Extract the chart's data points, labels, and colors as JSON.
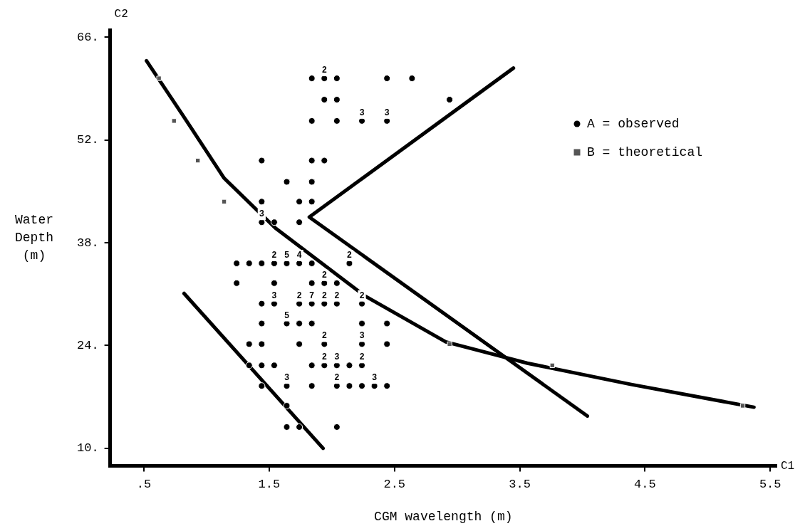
{
  "chart_data": {
    "type": "scatter",
    "xlabel": "CGM wavelength (m)",
    "ylabel": "Water Depth (m)",
    "xlim": [
      0.23,
      5.55
    ],
    "ylim": [
      7.6,
      67
    ],
    "xticks": [
      {
        "value": 0.5,
        "label": ".5"
      },
      1.5,
      2.5,
      3.5,
      4.5,
      5.5
    ],
    "yticks": [
      {
        "value": 10,
        "label": "10."
      },
      {
        "value": 24,
        "label": "24."
      },
      {
        "value": 38,
        "label": "38."
      },
      {
        "value": 52,
        "label": "52."
      },
      {
        "value": 66,
        "label": "66."
      }
    ],
    "grid": false,
    "legend": "top right",
    "annotations": [
      "C2",
      "C1",
      {
        "text": "2",
        "x": 1.94,
        "y": 60.4
      },
      {
        "text": "3",
        "x": 2.24,
        "y": 54.6
      },
      {
        "text": "3",
        "x": 2.44,
        "y": 54.6
      },
      {
        "text": "3",
        "x": 1.44,
        "y": 40.8
      },
      {
        "text": "2",
        "x": 1.54,
        "y": 35.2
      },
      {
        "text": "5",
        "x": 1.64,
        "y": 35.2
      },
      {
        "text": "4",
        "x": 1.74,
        "y": 35.2
      },
      {
        "text": "2",
        "x": 2.14,
        "y": 35.2
      },
      {
        "text": "2",
        "x": 1.94,
        "y": 32.5
      },
      {
        "text": "3",
        "x": 1.54,
        "y": 29.7
      },
      {
        "text": "2",
        "x": 1.74,
        "y": 29.7
      },
      {
        "text": "7",
        "x": 1.84,
        "y": 29.7
      },
      {
        "text": "2",
        "x": 1.94,
        "y": 29.7
      },
      {
        "text": "2",
        "x": 2.04,
        "y": 29.7
      },
      {
        "text": "2",
        "x": 2.24,
        "y": 29.7
      },
      {
        "text": "5",
        "x": 1.64,
        "y": 27.0
      },
      {
        "text": "2",
        "x": 1.94,
        "y": 24.2
      },
      {
        "text": "3",
        "x": 2.24,
        "y": 24.2
      },
      {
        "text": "2",
        "x": 1.94,
        "y": 21.3
      },
      {
        "text": "3",
        "x": 2.04,
        "y": 21.3
      },
      {
        "text": "2",
        "x": 2.24,
        "y": 21.3
      },
      {
        "text": "3",
        "x": 1.64,
        "y": 18.5
      },
      {
        "text": "2",
        "x": 2.04,
        "y": 18.5
      },
      {
        "text": "3",
        "x": 2.34,
        "y": 18.5
      }
    ],
    "series": [
      {
        "name": "A = observed",
        "color": "#000000",
        "marker": "circle",
        "x": [
          1.84,
          1.94,
          2.04,
          2.44,
          2.64,
          1.94,
          2.04,
          2.94,
          1.84,
          2.04,
          2.24,
          2.44,
          1.44,
          1.84,
          1.94,
          1.64,
          1.84,
          1.44,
          1.74,
          1.84,
          1.44,
          1.54,
          1.74,
          1.24,
          1.34,
          1.44,
          1.54,
          1.64,
          1.74,
          1.84,
          2.14,
          1.24,
          1.54,
          1.84,
          1.94,
          2.04,
          1.44,
          1.54,
          1.74,
          1.84,
          1.94,
          2.04,
          2.24,
          1.44,
          1.64,
          1.74,
          1.84,
          2.24,
          2.44,
          1.34,
          1.44,
          1.74,
          1.94,
          2.24,
          2.44,
          1.34,
          1.44,
          1.54,
          1.84,
          1.94,
          2.04,
          2.14,
          2.24,
          1.44,
          1.64,
          1.84,
          2.04,
          2.14,
          2.24,
          2.34,
          2.44,
          1.64,
          1.64,
          1.74,
          2.04
        ],
        "values": [
          60.4,
          60.4,
          60.4,
          60.4,
          60.4,
          57.5,
          57.5,
          57.5,
          54.6,
          54.6,
          54.6,
          54.6,
          49.2,
          49.2,
          49.2,
          46.3,
          46.3,
          43.6,
          43.6,
          43.6,
          40.8,
          40.8,
          40.8,
          35.2,
          35.2,
          35.2,
          35.2,
          35.2,
          35.2,
          35.2,
          35.2,
          32.5,
          32.5,
          32.5,
          32.5,
          32.5,
          29.7,
          29.7,
          29.7,
          29.7,
          29.7,
          29.7,
          29.7,
          27.0,
          27.0,
          27.0,
          27.0,
          27.0,
          27.0,
          24.2,
          24.2,
          24.2,
          24.2,
          24.2,
          24.2,
          21.3,
          21.3,
          21.3,
          21.3,
          21.3,
          21.3,
          21.3,
          21.3,
          18.5,
          18.5,
          18.5,
          18.5,
          18.5,
          18.5,
          18.5,
          18.5,
          15.8,
          12.9,
          12.9,
          12.9
        ]
      },
      {
        "name": "B = theoretical",
        "color": "#555555",
        "marker": "square",
        "x": [
          0.62,
          0.74,
          0.93,
          1.14,
          2.94,
          3.76,
          5.28
        ],
        "values": [
          60.4,
          54.6,
          49.2,
          43.6,
          24.2,
          21.3,
          15.8
        ]
      },
      {
        "type": "line",
        "color": "#000000",
        "x": [
          0.52,
          0.84,
          1.14,
          1.55,
          2.26,
          2.91,
          3.56,
          4.39,
          5.37
        ],
        "values": [
          62.8,
          54.6,
          46.8,
          40.0,
          30.8,
          24.5,
          21.6,
          18.7,
          15.6
        ]
      },
      {
        "type": "line",
        "color": "#000000",
        "x": [
          3.45,
          1.82,
          4.04
        ],
        "values": [
          61.8,
          41.5,
          14.4
        ]
      },
      {
        "type": "line",
        "color": "#000000",
        "x": [
          0.82,
          1.93
        ],
        "values": [
          31.1,
          10.0
        ]
      }
    ]
  }
}
